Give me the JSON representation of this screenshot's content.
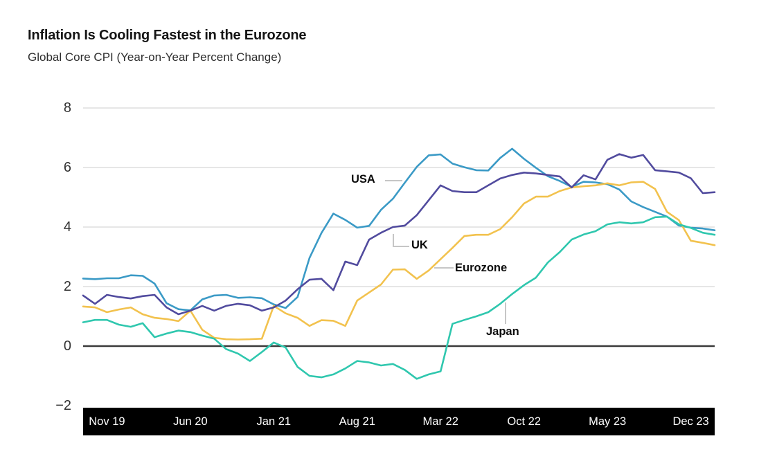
{
  "chart_data": {
    "type": "line",
    "title": "Inflation Is Cooling Fastest in the Eurozone",
    "subtitle": "Global Core CPI (Year-on-Year Percent Change)",
    "unit": "percent",
    "x": [
      "Sep 19",
      "Oct 19",
      "Nov 19",
      "Dec 19",
      "Jan 20",
      "Feb 20",
      "Mar 20",
      "Apr 20",
      "May 20",
      "Jun 20",
      "Jul 20",
      "Aug 20",
      "Sep 20",
      "Oct 20",
      "Nov 20",
      "Dec 20",
      "Jan 21",
      "Feb 21",
      "Mar 21",
      "Apr 21",
      "May 21",
      "Jun 21",
      "Jul 21",
      "Aug 21",
      "Sep 21",
      "Oct 21",
      "Nov 21",
      "Dec 21",
      "Jan 22",
      "Feb 22",
      "Mar 22",
      "Apr 22",
      "May 22",
      "Jun 22",
      "Jul 22",
      "Aug 22",
      "Sep 22",
      "Oct 22",
      "Nov 22",
      "Dec 22",
      "Jan 23",
      "Feb 23",
      "Mar 23",
      "Apr 23",
      "May 23",
      "Jun 23",
      "Jul 23",
      "Aug 23",
      "Sep 23",
      "Oct 23",
      "Nov 23",
      "Dec 23",
      "Jan 24",
      "Feb 24"
    ],
    "x_tick_labels": [
      "Nov 19",
      "Jun 20",
      "Jan 21",
      "Aug 21",
      "Mar 22",
      "Oct 22",
      "May 23",
      "Dec 23"
    ],
    "x_tick_indices": [
      2,
      9,
      16,
      23,
      30,
      37,
      44,
      51
    ],
    "y_ticks": [
      8,
      6,
      4,
      2,
      0,
      -2
    ],
    "y_tick_labels": [
      "8",
      "6",
      "4",
      "2",
      "0",
      "−2"
    ],
    "ylim": [
      -2,
      8
    ],
    "grid": "horizontal-light",
    "zero_line": true,
    "x_axis_style": "black-band",
    "legend": "inline-series-labels",
    "series": [
      {
        "name": "USA",
        "color": "#3b9ac6",
        "values": [
          2.27,
          2.25,
          2.28,
          2.28,
          2.38,
          2.36,
          2.1,
          1.44,
          1.24,
          1.2,
          1.57,
          1.7,
          1.72,
          1.62,
          1.64,
          1.61,
          1.4,
          1.28,
          1.65,
          2.96,
          3.8,
          4.45,
          4.24,
          3.98,
          4.04,
          4.58,
          4.95,
          5.49,
          6.02,
          6.41,
          6.44,
          6.13,
          6.01,
          5.91,
          5.9,
          6.32,
          6.63,
          6.29,
          5.99,
          5.71,
          5.55,
          5.35,
          5.52,
          5.5,
          5.44,
          5.26,
          4.86,
          4.67,
          4.51,
          4.35,
          4.05,
          3.98,
          3.95,
          3.89
        ]
      },
      {
        "name": "UK",
        "color": "#514b9e",
        "values": [
          1.7,
          1.42,
          1.72,
          1.65,
          1.6,
          1.68,
          1.72,
          1.3,
          1.07,
          1.19,
          1.35,
          1.19,
          1.35,
          1.42,
          1.37,
          1.19,
          1.3,
          1.53,
          1.91,
          2.23,
          2.26,
          1.88,
          2.84,
          2.72,
          3.58,
          3.81,
          4.0,
          4.05,
          4.4,
          4.9,
          5.4,
          5.21,
          5.17,
          5.17,
          5.4,
          5.63,
          5.75,
          5.83,
          5.8,
          5.75,
          5.7,
          5.33,
          5.74,
          5.6,
          6.26,
          6.45,
          6.33,
          6.42,
          5.91,
          5.87,
          5.83,
          5.64,
          5.14,
          5.17
        ]
      },
      {
        "name": "Eurozone",
        "color": "#f2c24e",
        "values": [
          1.33,
          1.3,
          1.14,
          1.23,
          1.3,
          1.07,
          0.95,
          0.91,
          0.84,
          1.19,
          0.55,
          0.28,
          0.23,
          0.22,
          0.23,
          0.25,
          1.35,
          1.1,
          0.95,
          0.68,
          0.87,
          0.85,
          0.68,
          1.53,
          1.8,
          2.07,
          2.57,
          2.58,
          2.26,
          2.54,
          2.92,
          3.3,
          3.7,
          3.74,
          3.74,
          3.93,
          4.33,
          4.79,
          5.02,
          5.02,
          5.21,
          5.33,
          5.37,
          5.4,
          5.47,
          5.4,
          5.5,
          5.52,
          5.28,
          4.51,
          4.23,
          3.54,
          3.47,
          3.39
        ]
      },
      {
        "name": "Japan",
        "color": "#2fc7ae",
        "values": [
          0.8,
          0.88,
          0.88,
          0.72,
          0.65,
          0.77,
          0.3,
          0.42,
          0.52,
          0.47,
          0.35,
          0.25,
          -0.1,
          -0.25,
          -0.5,
          -0.2,
          0.12,
          -0.05,
          -0.7,
          -1.0,
          -1.05,
          -0.95,
          -0.75,
          -0.5,
          -0.55,
          -0.65,
          -0.6,
          -0.8,
          -1.1,
          -0.95,
          -0.85,
          0.75,
          0.88,
          1.0,
          1.14,
          1.42,
          1.75,
          2.05,
          2.3,
          2.81,
          3.16,
          3.58,
          3.75,
          3.86,
          4.09,
          4.16,
          4.12,
          4.16,
          4.33,
          4.35,
          4.09,
          3.97,
          3.81,
          3.74
        ]
      }
    ],
    "annotations": [
      {
        "text": "USA",
        "series": "USA",
        "attach_x": "Dec 21"
      },
      {
        "text": "UK",
        "series": "UK",
        "attach_x": "Nov 21"
      },
      {
        "text": "Eurozone",
        "series": "Eurozone",
        "attach_x": "Feb 22"
      },
      {
        "text": "Japan",
        "series": "Japan",
        "attach_x": "Aug 22"
      }
    ],
    "colors": {
      "grid": "#d8d8d8",
      "zero_line": "#3a3a3a",
      "axis_band_bg": "#000000",
      "axis_band_text": "#ffffff",
      "y_tick_text": "#333333",
      "title_text": "#151515",
      "subtitle_text": "#2e2e2e",
      "annotation_text": "#0c0c0c",
      "connector": "#c6c6c6"
    }
  }
}
